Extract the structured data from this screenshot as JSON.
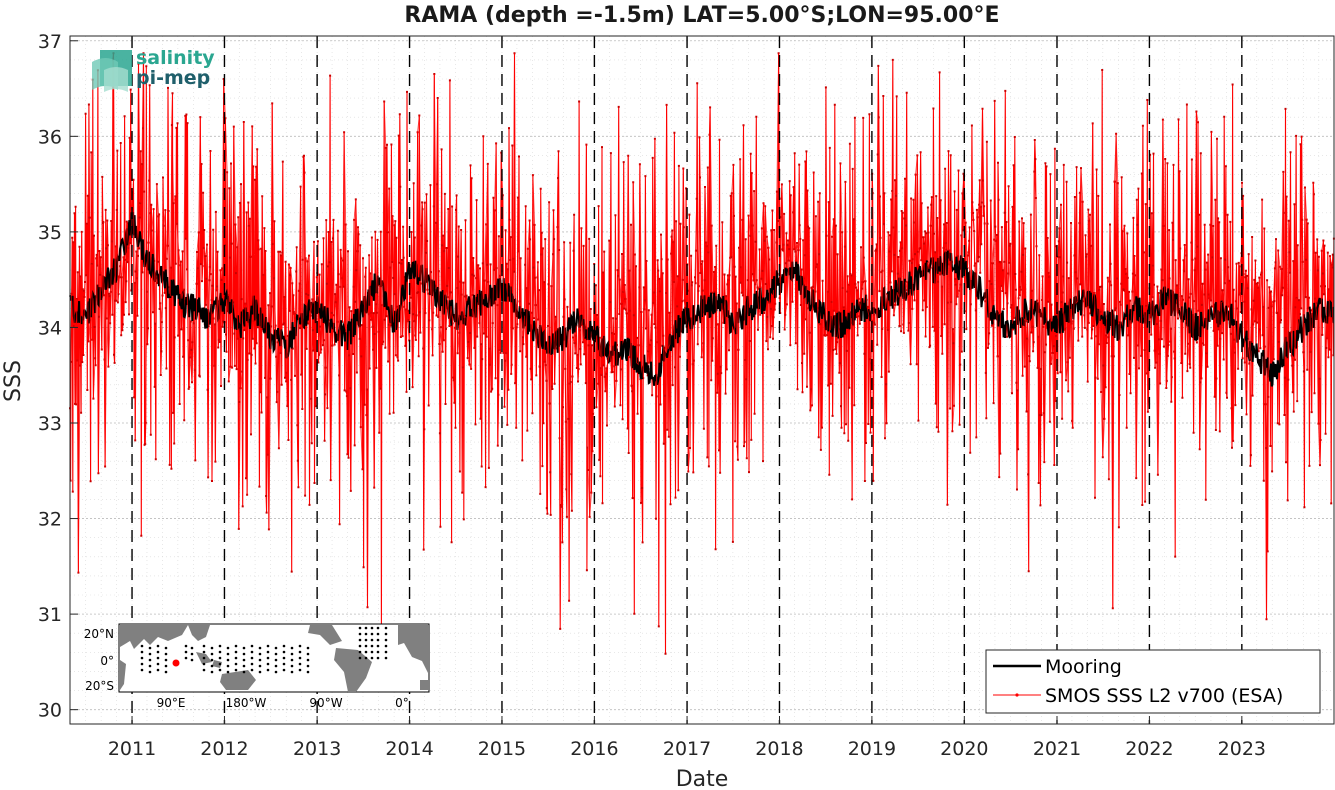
{
  "chart_data": {
    "type": "line",
    "title": "RAMA (depth =-1.5m) LAT=5.00°S;LON=95.00°E",
    "xlabel": "Date",
    "ylabel": "SSS",
    "xlim": [
      "2010-05-01",
      "2023-12-31"
    ],
    "ylim": [
      29.85,
      37.05
    ],
    "x_tick_labels": [
      "2011",
      "2012",
      "2013",
      "2014",
      "2015",
      "2016",
      "2017",
      "2018",
      "2019",
      "2020",
      "2021",
      "2022",
      "2023"
    ],
    "y_tick_labels": [
      "30",
      "31",
      "32",
      "33",
      "34",
      "35",
      "36",
      "37"
    ],
    "grid": true,
    "year_boundary_lines": "dashed black vertical line at each year start",
    "legend": {
      "placement": "bottom-right",
      "entries": [
        "Mooring",
        "SMOS SSS L2 v700 (ESA)"
      ]
    },
    "series": [
      {
        "name": "Mooring",
        "color": "#000000",
        "x": [
          "2010-05-01",
          "2010-07-01",
          "2010-09-01",
          "2010-11-01",
          "2011-01-01",
          "2011-03-01",
          "2011-05-01",
          "2011-07-01",
          "2011-09-01",
          "2011-11-01",
          "2012-01-01",
          "2012-03-01",
          "2012-05-01",
          "2012-07-01",
          "2012-09-01",
          "2012-11-01",
          "2013-01-01",
          "2013-03-01",
          "2013-05-01",
          "2013-07-01",
          "2013-09-01",
          "2013-11-01",
          "2014-01-01",
          "2014-03-01",
          "2014-05-01",
          "2014-07-01",
          "2014-09-01",
          "2014-11-01",
          "2015-01-01",
          "2015-03-01",
          "2015-05-01",
          "2015-07-01",
          "2015-09-01",
          "2015-11-01",
          "2016-01-01",
          "2016-03-01",
          "2016-05-01",
          "2016-07-01",
          "2016-09-01",
          "2016-11-01",
          "2017-01-01",
          "2017-03-01",
          "2017-05-01",
          "2017-07-01",
          "2017-09-01",
          "2017-11-01",
          "2018-01-01",
          "2018-03-01",
          "2018-05-01",
          "2018-07-01",
          "2018-09-01",
          "2018-11-01",
          "2019-01-01",
          "2019-03-01",
          "2019-05-01",
          "2019-07-01",
          "2019-09-01",
          "2019-11-01",
          "2020-01-01",
          "2020-03-01",
          "2020-05-01",
          "2020-07-01",
          "2020-09-01",
          "2020-11-01",
          "2021-01-01",
          "2021-03-01",
          "2021-05-01",
          "2021-07-01",
          "2021-09-01",
          "2021-11-01",
          "2022-01-01",
          "2022-03-01",
          "2022-05-01",
          "2022-07-01",
          "2022-09-01",
          "2022-11-01",
          "2023-01-01",
          "2023-03-01",
          "2023-05-01",
          "2023-07-01",
          "2023-09-01",
          "2023-11-01",
          "2023-12-31"
        ],
        "y": [
          34.2,
          34.1,
          34.4,
          34.6,
          35.1,
          34.7,
          34.5,
          34.3,
          34.2,
          34.1,
          34.3,
          34.0,
          34.2,
          33.9,
          33.8,
          34.1,
          34.2,
          34.0,
          33.9,
          34.2,
          34.5,
          34.0,
          34.6,
          34.5,
          34.3,
          34.1,
          34.2,
          34.3,
          34.4,
          34.2,
          34.0,
          33.8,
          33.9,
          34.1,
          33.9,
          33.7,
          33.8,
          33.6,
          33.5,
          33.9,
          34.1,
          34.2,
          34.3,
          34.0,
          34.2,
          34.3,
          34.5,
          34.6,
          34.3,
          34.1,
          34.0,
          34.2,
          34.2,
          34.3,
          34.4,
          34.5,
          34.6,
          34.7,
          34.6,
          34.4,
          34.1,
          34.0,
          34.2,
          34.1,
          34.0,
          34.2,
          34.3,
          34.1,
          34.0,
          34.2,
          34.1,
          34.3,
          34.2,
          34.0,
          34.1,
          34.2,
          33.9,
          33.7,
          33.5,
          33.8,
          34.0,
          34.2,
          34.1
        ]
      },
      {
        "name": "SMOS SSS L2 v700 (ESA)",
        "color": "#ff0000",
        "description_note": "",
        "x": [
          "2010-05-01",
          "2010-09-15",
          "2011-01-20",
          "2011-06-01",
          "2011-09-10",
          "2012-01-15",
          "2012-05-20",
          "2012-10-01",
          "2013-02-01",
          "2013-06-01",
          "2013-10-01",
          "2014-03-01",
          "2014-07-01",
          "2014-11-01",
          "2015-03-01",
          "2015-07-01",
          "2015-11-01",
          "2016-03-01",
          "2016-07-01",
          "2016-11-01",
          "2017-03-01",
          "2017-07-01",
          "2017-11-01",
          "2018-03-01",
          "2018-07-01",
          "2018-11-01",
          "2019-03-01",
          "2019-07-01",
          "2019-11-01",
          "2020-03-01",
          "2020-07-01",
          "2020-11-01",
          "2021-03-01",
          "2021-07-01",
          "2021-11-01",
          "2022-03-01",
          "2022-07-01",
          "2022-11-01",
          "2023-03-01",
          "2023-07-01",
          "2023-11-01",
          "2023-12-31"
        ],
        "y": [
          34.3,
          34.6,
          34.9,
          34.4,
          34.2,
          34.3,
          34.1,
          34.0,
          34.2,
          34.1,
          34.4,
          34.6,
          34.3,
          34.2,
          34.5,
          34.1,
          34.0,
          33.9,
          33.8,
          34.2,
          34.3,
          34.4,
          34.6,
          34.7,
          34.4,
          34.2,
          34.5,
          34.6,
          34.8,
          34.6,
          34.3,
          34.1,
          34.2,
          34.3,
          34.1,
          34.2,
          34.3,
          34.2,
          34.1,
          34.0,
          34.3,
          34.2
        ],
        "envelope": {
          "note": "",
          "typical_range": [
            32.5,
            35.8
          ],
          "extreme_min": 30.25,
          "extreme_max": 36.87
        }
      }
    ]
  },
  "logo": {
    "line1": "salinity",
    "line2": "pi-mep"
  },
  "inset_map": {
    "y_labels": [
      "20",
      "N",
      "0",
      "20",
      "S"
    ],
    "y_ticks": [
      "20°N",
      "0°",
      "20°S"
    ],
    "x_ticks": [
      "90°E",
      "180°W",
      "90°W",
      "0°"
    ],
    "marker_color": "#ff0000",
    "land_color": "#808080"
  }
}
